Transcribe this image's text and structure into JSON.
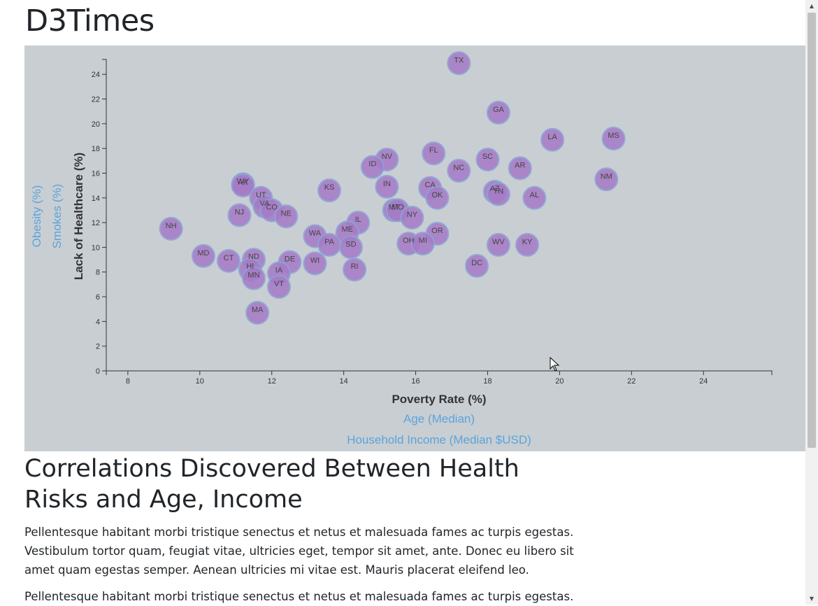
{
  "page": {
    "site_title": "D3Times",
    "article_heading": "Correlations Discovered Between Health Risks and Age, Income",
    "paragraph_1": "Pellentesque habitant morbi tristique senectus et netus et malesuada fames ac turpis egestas. Vestibulum tortor quam, feugiat vitae, ultricies eget, tempor sit amet, ante. Donec eu libero sit amet quam egestas semper. Aenean ultricies mi vitae est. Mauris placerat eleifend leo.",
    "paragraph_2": "Pellentesque habitant morbi tristique senectus et netus et malesuada fames ac turpis egestas."
  },
  "scrollbar": {
    "up_arrow": "▲",
    "down_arrow": "▼"
  },
  "chart_data": {
    "type": "scatter",
    "x_axis": {
      "active_label": "Poverty Rate (%)",
      "inactive_labels": [
        "Age (Median)",
        "Household Income (Median $USD)"
      ],
      "range": [
        7.4,
        25.9
      ],
      "ticks": [
        8,
        10,
        12,
        14,
        16,
        18,
        20,
        22,
        24
      ]
    },
    "y_axis": {
      "active_label": "Lack of Healthcare (%)",
      "inactive_labels": [
        "Smokes (%)",
        "Obesity (%)"
      ],
      "range": [
        0,
        25.2
      ],
      "ticks": [
        0,
        2,
        4,
        6,
        8,
        10,
        12,
        14,
        16,
        18,
        20,
        22,
        24
      ]
    },
    "colors": {
      "circle_fill": "#a67bc6",
      "circle_stroke": "#8aa4d6",
      "active_label": "#333333",
      "inactive_label": "#5aa4dc",
      "background": "#c9ced2"
    },
    "points": [
      {
        "abbr": "TX",
        "x": 17.2,
        "y": 24.9
      },
      {
        "abbr": "GA",
        "x": 18.3,
        "y": 20.9
      },
      {
        "abbr": "LA",
        "x": 19.8,
        "y": 18.7
      },
      {
        "abbr": "MS",
        "x": 21.5,
        "y": 18.8
      },
      {
        "abbr": "FL",
        "x": 16.5,
        "y": 17.6
      },
      {
        "abbr": "NV",
        "x": 15.2,
        "y": 17.1
      },
      {
        "abbr": "SC",
        "x": 18.0,
        "y": 17.1
      },
      {
        "abbr": "ID",
        "x": 14.8,
        "y": 16.5
      },
      {
        "abbr": "AR",
        "x": 18.9,
        "y": 16.4
      },
      {
        "abbr": "NC",
        "x": 17.2,
        "y": 16.2
      },
      {
        "abbr": "NM",
        "x": 21.3,
        "y": 15.5
      },
      {
        "abbr": "WY",
        "x": 11.2,
        "y": 15.1
      },
      {
        "abbr": "AK",
        "x": 11.2,
        "y": 15.0
      },
      {
        "abbr": "IN",
        "x": 15.2,
        "y": 14.9
      },
      {
        "abbr": "CA",
        "x": 16.4,
        "y": 14.8
      },
      {
        "abbr": "KS",
        "x": 13.6,
        "y": 14.6
      },
      {
        "abbr": "AZ",
        "x": 18.2,
        "y": 14.5
      },
      {
        "abbr": "TN",
        "x": 18.3,
        "y": 14.3
      },
      {
        "abbr": "UT",
        "x": 11.7,
        "y": 14.0
      },
      {
        "abbr": "OK",
        "x": 16.6,
        "y": 14.0
      },
      {
        "abbr": "AL",
        "x": 19.3,
        "y": 14.0
      },
      {
        "abbr": "VA",
        "x": 11.8,
        "y": 13.3
      },
      {
        "abbr": "CO",
        "x": 12.0,
        "y": 13.0
      },
      {
        "abbr": "MT",
        "x": 15.4,
        "y": 13.0
      },
      {
        "abbr": "MO",
        "x": 15.5,
        "y": 13.0
      },
      {
        "abbr": "NJ",
        "x": 11.1,
        "y": 12.6
      },
      {
        "abbr": "NE",
        "x": 12.4,
        "y": 12.5
      },
      {
        "abbr": "NY",
        "x": 15.9,
        "y": 12.4
      },
      {
        "abbr": "IL",
        "x": 14.4,
        "y": 12.0
      },
      {
        "abbr": "NH",
        "x": 9.2,
        "y": 11.5
      },
      {
        "abbr": "ME",
        "x": 14.1,
        "y": 11.2
      },
      {
        "abbr": "OR",
        "x": 16.6,
        "y": 11.1
      },
      {
        "abbr": "WA",
        "x": 13.2,
        "y": 10.9
      },
      {
        "abbr": "OH",
        "x": 15.8,
        "y": 10.3
      },
      {
        "abbr": "MI",
        "x": 16.2,
        "y": 10.3
      },
      {
        "abbr": "PA",
        "x": 13.6,
        "y": 10.2
      },
      {
        "abbr": "WV",
        "x": 18.3,
        "y": 10.2
      },
      {
        "abbr": "KY",
        "x": 19.1,
        "y": 10.2
      },
      {
        "abbr": "SD",
        "x": 14.2,
        "y": 10.0
      },
      {
        "abbr": "MD",
        "x": 10.1,
        "y": 9.3
      },
      {
        "abbr": "ND",
        "x": 11.5,
        "y": 9.0
      },
      {
        "abbr": "CT",
        "x": 10.8,
        "y": 8.9
      },
      {
        "abbr": "DE",
        "x": 12.5,
        "y": 8.8
      },
      {
        "abbr": "WI",
        "x": 13.2,
        "y": 8.7
      },
      {
        "abbr": "DC",
        "x": 17.7,
        "y": 8.5
      },
      {
        "abbr": "HI",
        "x": 11.4,
        "y": 8.2
      },
      {
        "abbr": "RI",
        "x": 14.3,
        "y": 8.2
      },
      {
        "abbr": "IA",
        "x": 12.2,
        "y": 7.9
      },
      {
        "abbr": "MN",
        "x": 11.5,
        "y": 7.5
      },
      {
        "abbr": "VT",
        "x": 12.2,
        "y": 6.8
      },
      {
        "abbr": "MA",
        "x": 11.6,
        "y": 4.7
      }
    ]
  }
}
